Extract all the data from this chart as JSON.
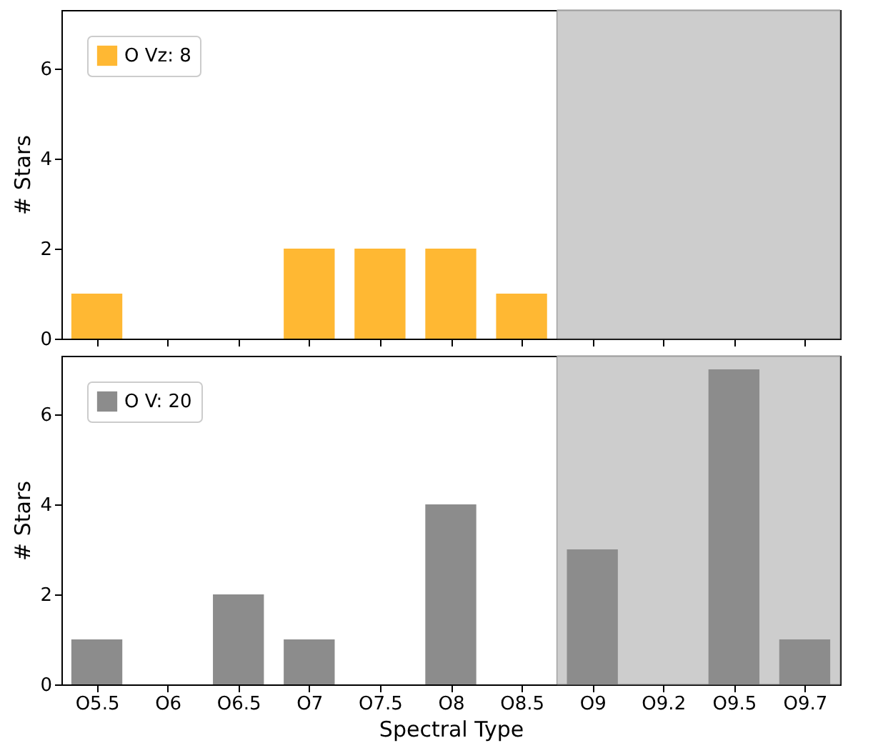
{
  "chart_data": [
    {
      "type": "bar",
      "categories": [
        "O5.5",
        "O6",
        "O6.5",
        "O7",
        "O7.5",
        "O8",
        "O8.5",
        "O9",
        "O9.2",
        "O9.5",
        "O9.7"
      ],
      "ylabel": "# Stars",
      "ylim": [
        0,
        7.3
      ],
      "yticks": [
        0,
        2,
        4,
        6
      ],
      "tick_labels": "y",
      "legend": "top left",
      "series": [
        {
          "name": "O Vz: 8",
          "color": "#ffb833",
          "values": [
            1,
            0,
            0,
            2,
            2,
            2,
            1,
            0,
            0,
            0,
            0
          ]
        }
      ],
      "bands": [
        {
          "axis": "x",
          "from": "O9",
          "to": "O9.7",
          "color": "#c8c8c8"
        }
      ]
    },
    {
      "type": "bar",
      "categories": [
        "O5.5",
        "O6",
        "O6.5",
        "O7",
        "O7.5",
        "O8",
        "O8.5",
        "O9",
        "O9.2",
        "O9.5",
        "O9.7"
      ],
      "xlabel": "Spectral Type",
      "ylabel": "# Stars",
      "ylim": [
        0,
        7.3
      ],
      "yticks": [
        0,
        2,
        4,
        6
      ],
      "legend": "top left",
      "series": [
        {
          "name": "O V: 20",
          "color": "#8c8c8c",
          "values": [
            1,
            0,
            2,
            1,
            0,
            4,
            0,
            3,
            0,
            7,
            1
          ]
        }
      ],
      "bands": [
        {
          "axis": "x",
          "from": "O9",
          "to": "O9.7",
          "color": "#c8c8c8"
        }
      ]
    }
  ]
}
